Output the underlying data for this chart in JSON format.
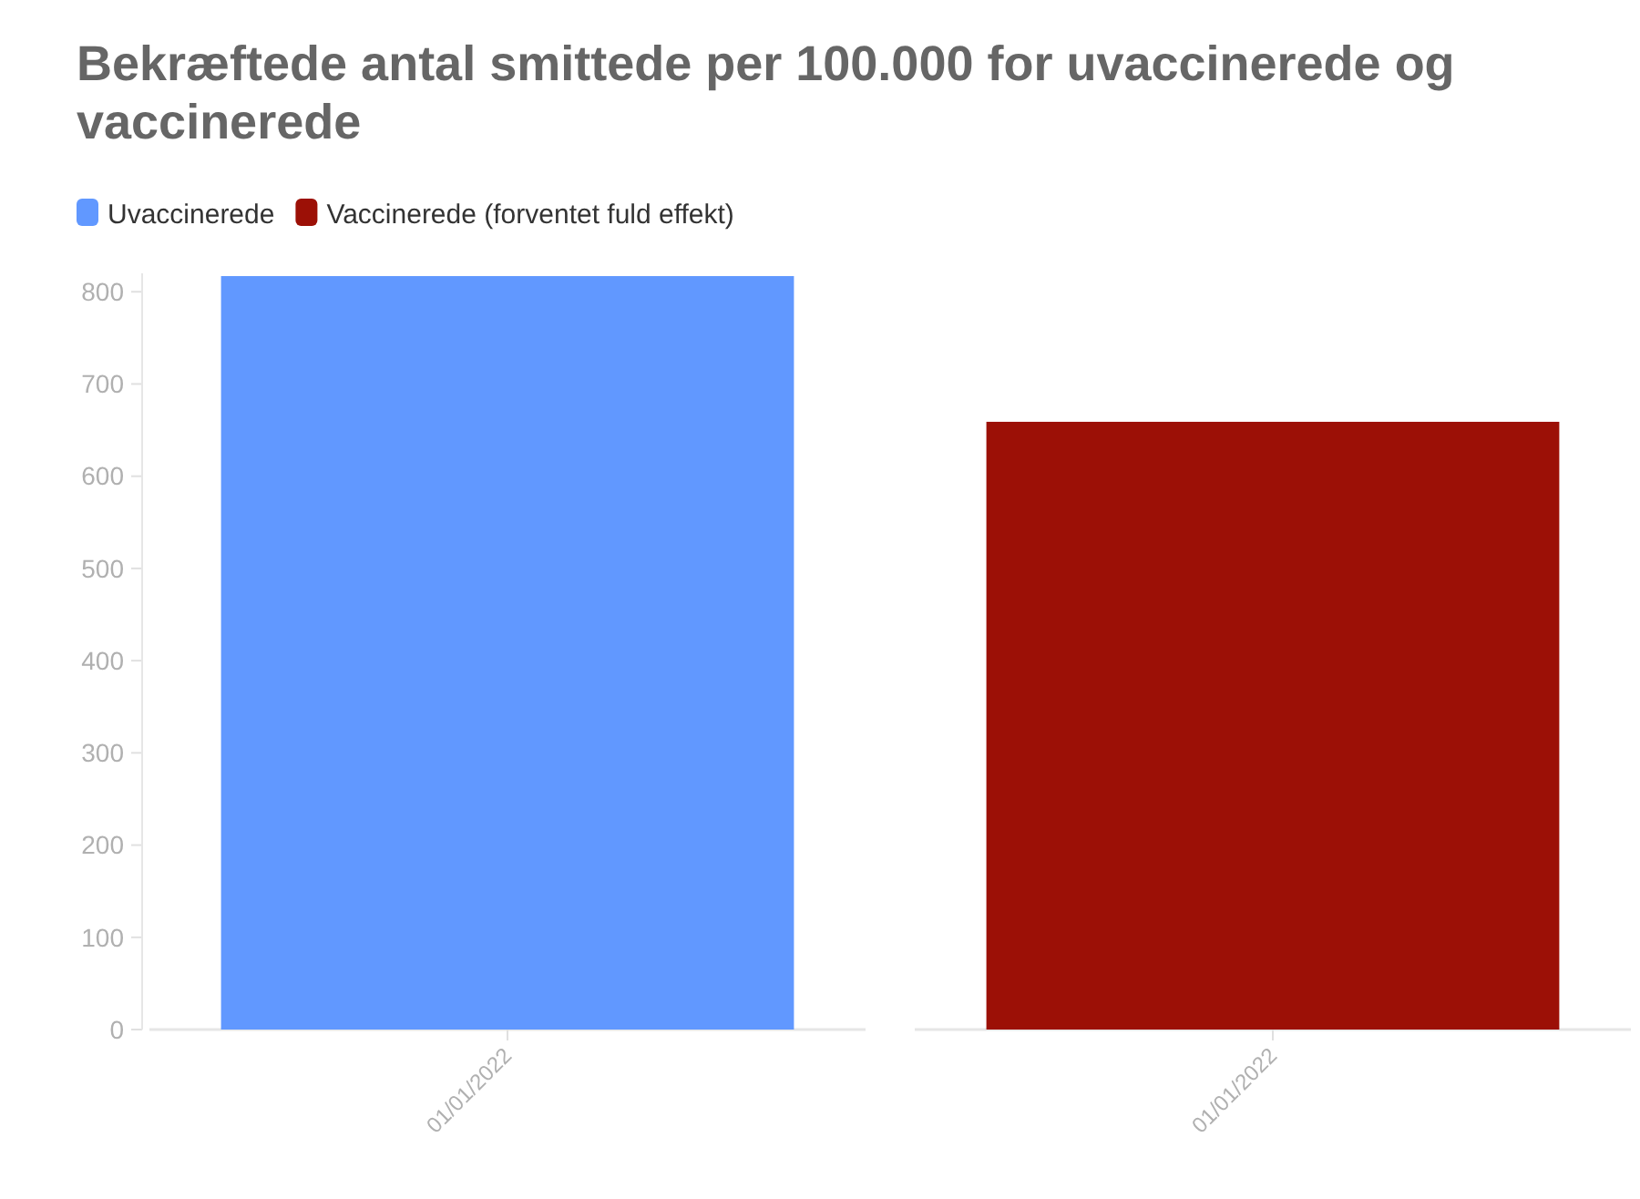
{
  "chart_data": {
    "type": "bar",
    "title": "Bekræftede antal smittede per 100.000 for uvaccinerede og vaccinerede",
    "categories": [
      "01/01/2022",
      "01/01/2022"
    ],
    "series": [
      {
        "name": "Uvaccinerede",
        "color": "#6198ff",
        "values": [
          817,
          null
        ]
      },
      {
        "name": "Vaccinerede (forventet fuld effekt)",
        "color": "#9c1006",
        "values": [
          null,
          659
        ]
      }
    ],
    "ylim": [
      0,
      820
    ],
    "yticks": [
      0,
      100,
      200,
      300,
      400,
      500,
      600,
      700,
      800
    ],
    "legend": "top left"
  }
}
